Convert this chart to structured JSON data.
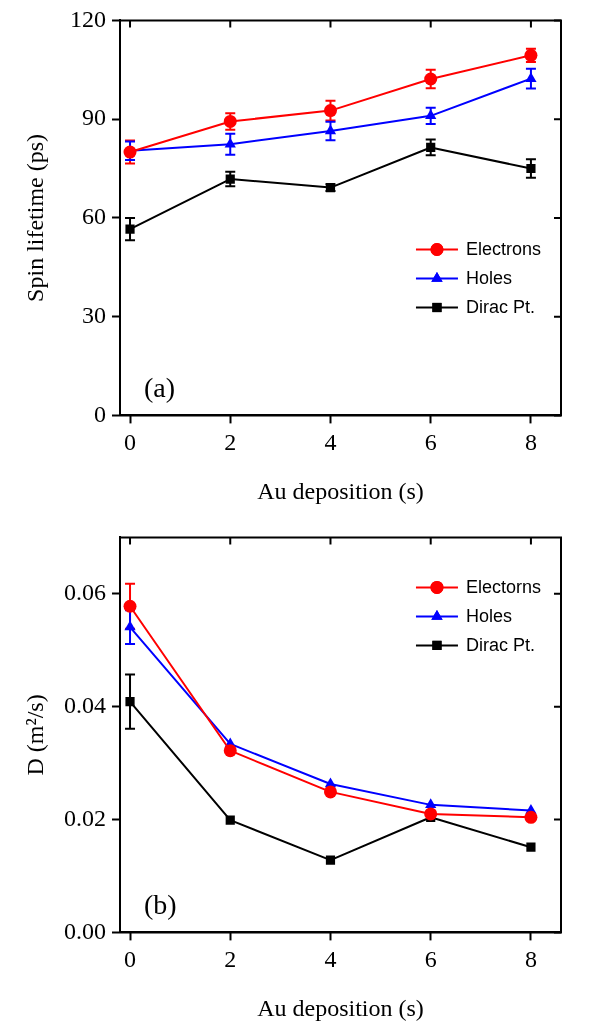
{
  "chart_data": [
    {
      "type": "line",
      "x": [
        0,
        2,
        4,
        6,
        8
      ],
      "xlabel": "Au deposition (s)",
      "ylabel": "Spin lifetime (ps)",
      "xlim": [
        -0.2,
        8.6
      ],
      "ylim": [
        0,
        120
      ],
      "xticks": [
        0,
        2,
        4,
        6,
        8
      ],
      "yticks": [
        0,
        30,
        60,
        90,
        120
      ],
      "grid": false,
      "legend": "right",
      "annotations": [
        "(a)"
      ],
      "series": [
        {
          "name": "Electrons",
          "color": "#ff0000",
          "marker": "circle",
          "values": [
            80.0,
            89.3,
            92.6,
            102.2,
            109.4
          ],
          "errors": [
            3.5,
            2.5,
            3,
            2.8,
            2
          ]
        },
        {
          "name": "Holes",
          "color": "#0000ff",
          "marker": "triangle",
          "values": [
            80.4,
            82.4,
            86.4,
            91.0,
            102.3
          ],
          "errors": [
            2.8,
            3.2,
            2.8,
            2.5,
            3
          ]
        },
        {
          "name": "Dirac Pt.",
          "color": "#000000",
          "marker": "square",
          "values": [
            56.6,
            71.8,
            69.2,
            81.4,
            75.0
          ],
          "errors": [
            3.4,
            2.2,
            1,
            2.4,
            2.8
          ]
        }
      ]
    },
    {
      "type": "line",
      "x": [
        0,
        2,
        4,
        6,
        8
      ],
      "xlabel": "Au deposition (s)",
      "ylabel": "D (m²/s)",
      "xlim": [
        -0.2,
        8.6
      ],
      "ylim": [
        0,
        0.07
      ],
      "xticks": [
        0,
        2,
        4,
        6,
        8
      ],
      "yticks": [
        {
          "value": 0,
          "label": "0.00"
        },
        {
          "value": 0.02,
          "label": "0.02"
        },
        {
          "value": 0.04,
          "label": "0.04"
        },
        {
          "value": 0.06,
          "label": "0.06"
        }
      ],
      "grid": false,
      "legend": "top right",
      "annotations": [
        "(b)"
      ],
      "series": [
        {
          "name": "Electorns",
          "color": "#ff0000",
          "marker": "circle",
          "values": [
            0.0578,
            0.0322,
            0.0249,
            0.021,
            0.0204
          ],
          "errors": [
            0.004,
            null,
            null,
            null,
            null
          ]
        },
        {
          "name": "Holes",
          "color": "#0000ff",
          "marker": "triangle",
          "values": [
            0.0541,
            0.0334,
            0.0263,
            0.0226,
            0.0216
          ],
          "errors": [
            0.003,
            null,
            null,
            null,
            null
          ]
        },
        {
          "name": "Dirac Pt.",
          "color": "#000000",
          "marker": "square",
          "values": [
            0.0409,
            0.0199,
            0.0128,
            0.0204,
            0.0151
          ],
          "errors": [
            0.0048,
            null,
            null,
            null,
            null
          ]
        }
      ]
    }
  ]
}
